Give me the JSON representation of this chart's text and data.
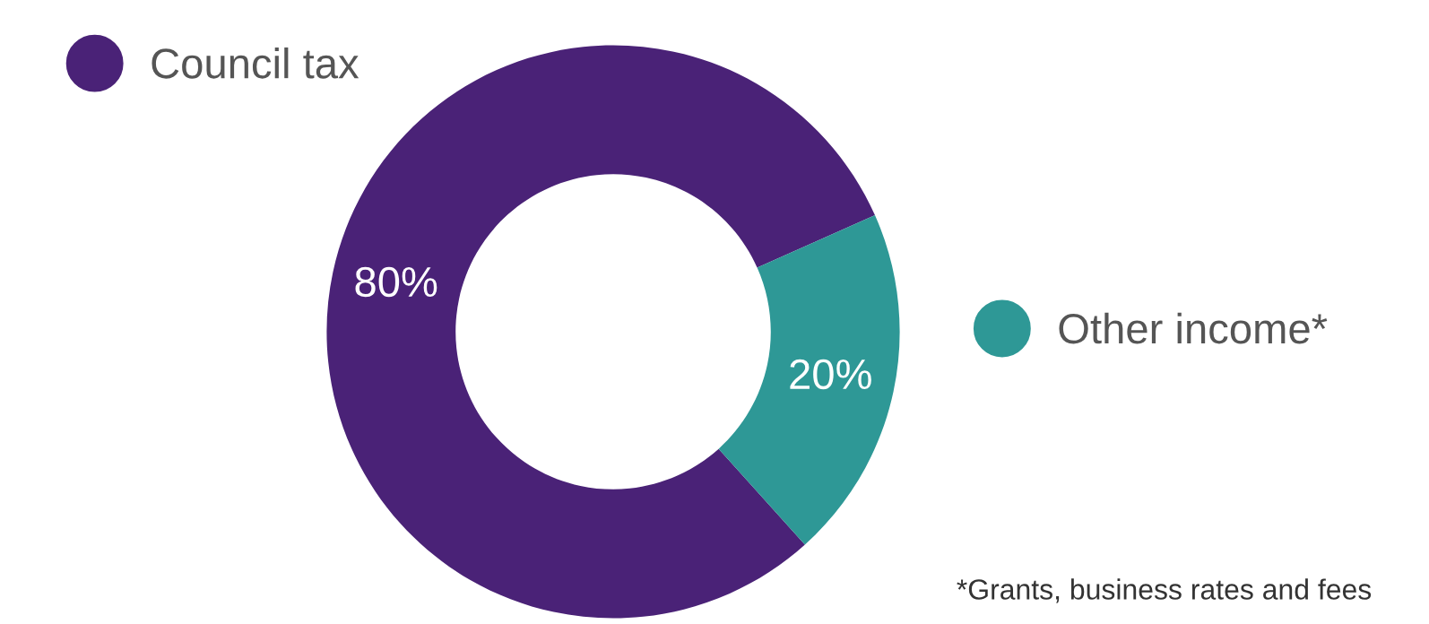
{
  "chart_data": {
    "type": "donut",
    "categories": [
      "Council tax",
      "Other income*"
    ],
    "values": [
      80,
      20
    ],
    "colors": [
      "#4a2277",
      "#2e9896"
    ],
    "value_labels": [
      "80%",
      "20%"
    ],
    "legend": "top right",
    "annotations": [
      "*Grants, business rates and fees"
    ]
  }
}
